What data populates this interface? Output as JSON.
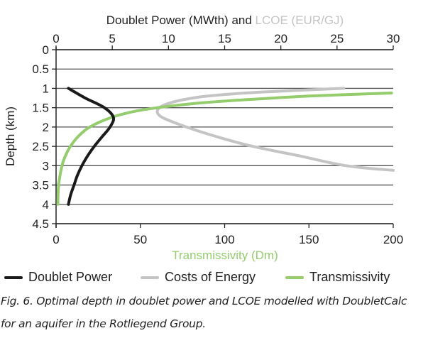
{
  "chart_data": {
    "type": "line",
    "title": "",
    "top_axis": {
      "label_part1": "Doublet Power (MWth) and ",
      "label_part2": "LCOE (EUR/GJ)",
      "range": [
        0,
        30
      ],
      "ticks": [
        "0",
        "5",
        "10",
        "15",
        "20",
        "25",
        "30"
      ],
      "tick_values": [
        0,
        5,
        10,
        15,
        20,
        25,
        30
      ]
    },
    "bottom_axis": {
      "label": "Transmissivity (Dm)",
      "range": [
        0,
        200
      ],
      "ticks": [
        "0",
        "50",
        "100",
        "150",
        "200"
      ],
      "tick_values": [
        0,
        50,
        100,
        150,
        200
      ]
    },
    "y_axis": {
      "label": "Depth (km)",
      "range": [
        0,
        4.5
      ],
      "inverted": true,
      "ticks": [
        "0",
        "0.5",
        "1",
        "1.5",
        "2",
        "2.5",
        "3",
        "3.5",
        "4",
        "4.5"
      ],
      "tick_values": [
        0,
        0.5,
        1,
        1.5,
        2,
        2.5,
        3,
        3.5,
        4,
        4.5
      ]
    },
    "grid": "horizontal",
    "legend_position": "bottom",
    "series": [
      {
        "name": "Doublet Power",
        "axis": "top",
        "color": "#1a1a1a",
        "depth": [
          1.0,
          1.25,
          1.5,
          1.75,
          2.0,
          2.25,
          2.5,
          2.75,
          3.0,
          3.25,
          3.5,
          3.75,
          4.0
        ],
        "values": [
          1.1,
          2.6,
          4.3,
          5.1,
          4.8,
          4.1,
          3.4,
          2.8,
          2.3,
          1.9,
          1.6,
          1.3,
          1.1
        ]
      },
      {
        "name": "Costs of Energy",
        "axis": "top",
        "color": "#c4c4c4",
        "depth": [
          1.0,
          1.1,
          1.2,
          1.3,
          1.4,
          1.5,
          1.6,
          1.7,
          1.8,
          2.0,
          2.25,
          2.5,
          2.75,
          3.0,
          3.12
        ],
        "values": [
          25.6,
          18.0,
          13.5,
          11.2,
          9.9,
          9.2,
          9.0,
          9.2,
          9.8,
          11.6,
          14.3,
          17.5,
          21.7,
          25.8,
          30.0
        ]
      },
      {
        "name": "Transmissivity",
        "axis": "bottom",
        "color": "#94cc6e",
        "depth": [
          1.12,
          1.2,
          1.3,
          1.4,
          1.5,
          1.6,
          1.75,
          2.0,
          2.25,
          2.5,
          2.75,
          3.0,
          3.5,
          4.0
        ],
        "values": [
          199,
          150,
          110,
          80,
          60,
          46,
          33,
          20,
          13,
          8.5,
          5.5,
          3.5,
          1.5,
          1.0
        ]
      }
    ]
  },
  "colors": {
    "axis": "#222222",
    "lcoe_label": "#c4c4c4",
    "transmissivity_label": "#94cc6e"
  },
  "legend": [
    {
      "label": "Doublet Power",
      "color": "#1a1a1a"
    },
    {
      "label": "Costs of Energy",
      "color": "#c4c4c4"
    },
    {
      "label": "Transmissivity",
      "color": "#94cc6e"
    }
  ],
  "caption": {
    "line1": "Fig. 6.  Optimal depth in doublet power and LCOE modelled with DoubletCalc",
    "line2": "for an aquifer in the Rotliegend Group."
  }
}
